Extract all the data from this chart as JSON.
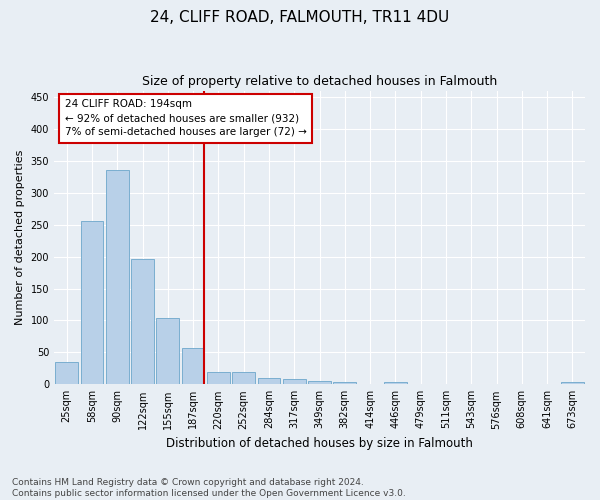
{
  "title": "24, CLIFF ROAD, FALMOUTH, TR11 4DU",
  "subtitle": "Size of property relative to detached houses in Falmouth",
  "xlabel": "Distribution of detached houses by size in Falmouth",
  "ylabel": "Number of detached properties",
  "categories": [
    "25sqm",
    "58sqm",
    "90sqm",
    "122sqm",
    "155sqm",
    "187sqm",
    "220sqm",
    "252sqm",
    "284sqm",
    "317sqm",
    "349sqm",
    "382sqm",
    "414sqm",
    "446sqm",
    "479sqm",
    "511sqm",
    "543sqm",
    "576sqm",
    "608sqm",
    "641sqm",
    "673sqm"
  ],
  "values": [
    35,
    255,
    335,
    197,
    104,
    57,
    20,
    19,
    10,
    8,
    5,
    3,
    0,
    4,
    0,
    0,
    0,
    0,
    0,
    0,
    3
  ],
  "bar_color": "#b8d0e8",
  "bar_edge_color": "#7aaed0",
  "vline_color": "#cc0000",
  "annotation_text": "24 CLIFF ROAD: 194sqm\n← 92% of detached houses are smaller (932)\n7% of semi-detached houses are larger (72) →",
  "annotation_box_color": "#ffffff",
  "annotation_box_edge": "#cc0000",
  "ylim": [
    0,
    460
  ],
  "yticks": [
    0,
    50,
    100,
    150,
    200,
    250,
    300,
    350,
    400,
    450
  ],
  "footer": "Contains HM Land Registry data © Crown copyright and database right 2024.\nContains public sector information licensed under the Open Government Licence v3.0.",
  "background_color": "#e8eef4",
  "grid_color": "#ffffff",
  "title_fontsize": 11,
  "subtitle_fontsize": 9,
  "axis_label_fontsize": 8,
  "tick_fontsize": 7,
  "annotation_fontsize": 7.5,
  "footer_fontsize": 6.5
}
